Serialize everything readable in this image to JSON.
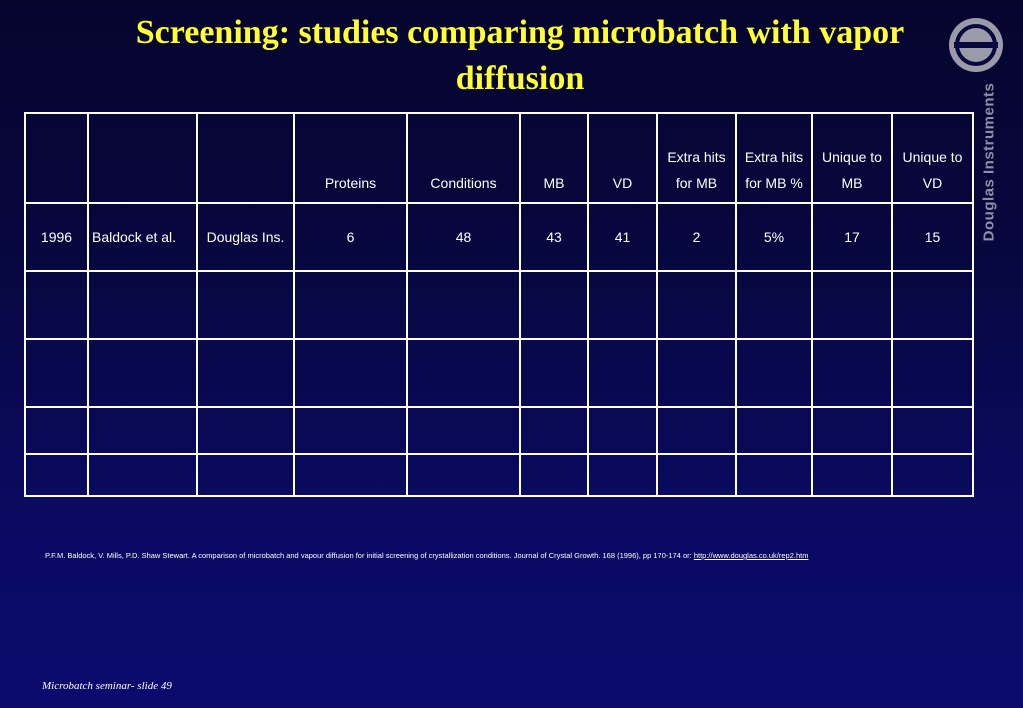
{
  "slide": {
    "title": "Screening: studies comparing microbatch with vapor diffusion",
    "brand": "Douglas Instruments",
    "footer": "Microbatch seminar- slide 49"
  },
  "table": {
    "headers": [
      "",
      "",
      "",
      "Proteins",
      "Conditions",
      "MB",
      "VD",
      "Extra hits for MB",
      "Extra hits for MB %",
      "Unique to MB",
      "Unique to VD"
    ],
    "rows": [
      [
        "1996",
        "Baldock et al.",
        "Douglas Ins.",
        "6",
        "48",
        "43",
        "41",
        "2",
        "5%",
        "17",
        "15"
      ],
      [
        "",
        "",
        "",
        "",
        "",
        "",
        "",
        "",
        "",
        "",
        ""
      ],
      [
        "",
        "",
        "",
        "",
        "",
        "",
        "",
        "",
        "",
        "",
        ""
      ],
      [
        "",
        "",
        "",
        "",
        "",
        "",
        "",
        "",
        "",
        "",
        ""
      ],
      [
        "",
        "",
        "",
        "",
        "",
        "",
        "",
        "",
        "",
        "",
        ""
      ]
    ]
  },
  "reference": {
    "text": "P.F.M. Baldock, V. Mills, P.D. Shaw Stewart. A comparison of microbatch and vapour diffusion for initial screening of crystallization conditions. Journal of Crystal Growth. 168 (1996), pp 170-174 or: ",
    "link_text": "http://www.douglas.co.uk/rep2.htm"
  },
  "colors": {
    "title": "#ffff33",
    "background_top": "#05052e",
    "background_bottom": "#0b0b6e",
    "logo": "#9a9aa8"
  },
  "icons": {
    "logo": "douglas-logo-icon"
  }
}
